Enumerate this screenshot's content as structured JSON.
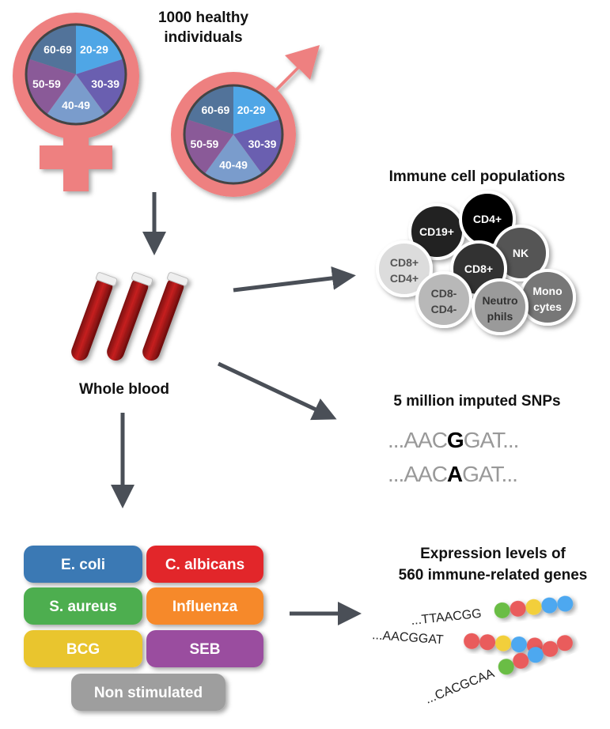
{
  "cohort": {
    "title_line1": "1000 healthy",
    "title_line2": "individuals",
    "age_groups": [
      "20-29",
      "30-39",
      "40-49",
      "50-59",
      "60-69"
    ],
    "age_colors": [
      "#4fa6e6",
      "#6a5fb0",
      "#7a9ccc",
      "#8a5a98",
      "#52739a"
    ],
    "symbol_color": "#ee8080"
  },
  "blood": {
    "label": "Whole blood"
  },
  "immune": {
    "title": "Immune cell populations",
    "cells": [
      {
        "l1": "CD19+",
        "l2": "",
        "fill": "#232323",
        "text": "#fff"
      },
      {
        "l1": "CD4+",
        "l2": "",
        "fill": "#050505",
        "text": "#fff"
      },
      {
        "l1": "NK",
        "l2": "",
        "fill": "#555555",
        "text": "#fff"
      },
      {
        "l1": "CD8+",
        "l2": "CD4+",
        "fill": "#dcdcdc",
        "text": "#555"
      },
      {
        "l1": "CD8+",
        "l2": "",
        "fill": "#333333",
        "text": "#fff"
      },
      {
        "l1": "Mono",
        "l2": "cytes",
        "fill": "#777777",
        "text": "#fff"
      },
      {
        "l1": "CD8-",
        "l2": "CD4-",
        "fill": "#b8b8b8",
        "text": "#444"
      },
      {
        "l1": "Neutro",
        "l2": "phils",
        "fill": "#9a9a9a",
        "text": "#333"
      }
    ]
  },
  "snps": {
    "title": "5 million imputed SNPs",
    "seq1": {
      "pre": "...AAC",
      "snp": "G",
      "post": "GAT..."
    },
    "seq2": {
      "pre": "...AAC",
      "snp": "A",
      "post": "GAT..."
    }
  },
  "stimuli": [
    {
      "label": "E. coli",
      "color": "#3a79b4"
    },
    {
      "label": "C. albicans",
      "color": "#e2272c"
    },
    {
      "label": "S. aureus",
      "color": "#4dae4f"
    },
    {
      "label": "Influenza",
      "color": "#f6892a"
    },
    {
      "label": "BCG",
      "color": "#e9c52f"
    },
    {
      "label": "SEB",
      "color": "#9a4d9f"
    },
    {
      "label": "Non stimulated",
      "color": "#9e9e9e"
    }
  ],
  "expression": {
    "title_line1": "Expression levels of",
    "title_line2": "560 immune-related genes",
    "genes": [
      {
        "seq": "...TTAACGG",
        "dots": [
          "#6bbd45",
          "#e95c5c",
          "#f2cf3b",
          "#4ea8f0",
          "#4ea8f0"
        ]
      },
      {
        "seq": "...AACGGAT",
        "dots": [
          "#e95c5c",
          "#e95c5c",
          "#f2cf3b",
          "#4ea8f0",
          "#e95c5c"
        ]
      },
      {
        "seq": "...CACGCAA",
        "dots": [
          "#6bbd45",
          "#e95c5c",
          "#4ea8f0",
          "#e95c5c",
          "#e95c5c"
        ]
      }
    ]
  }
}
